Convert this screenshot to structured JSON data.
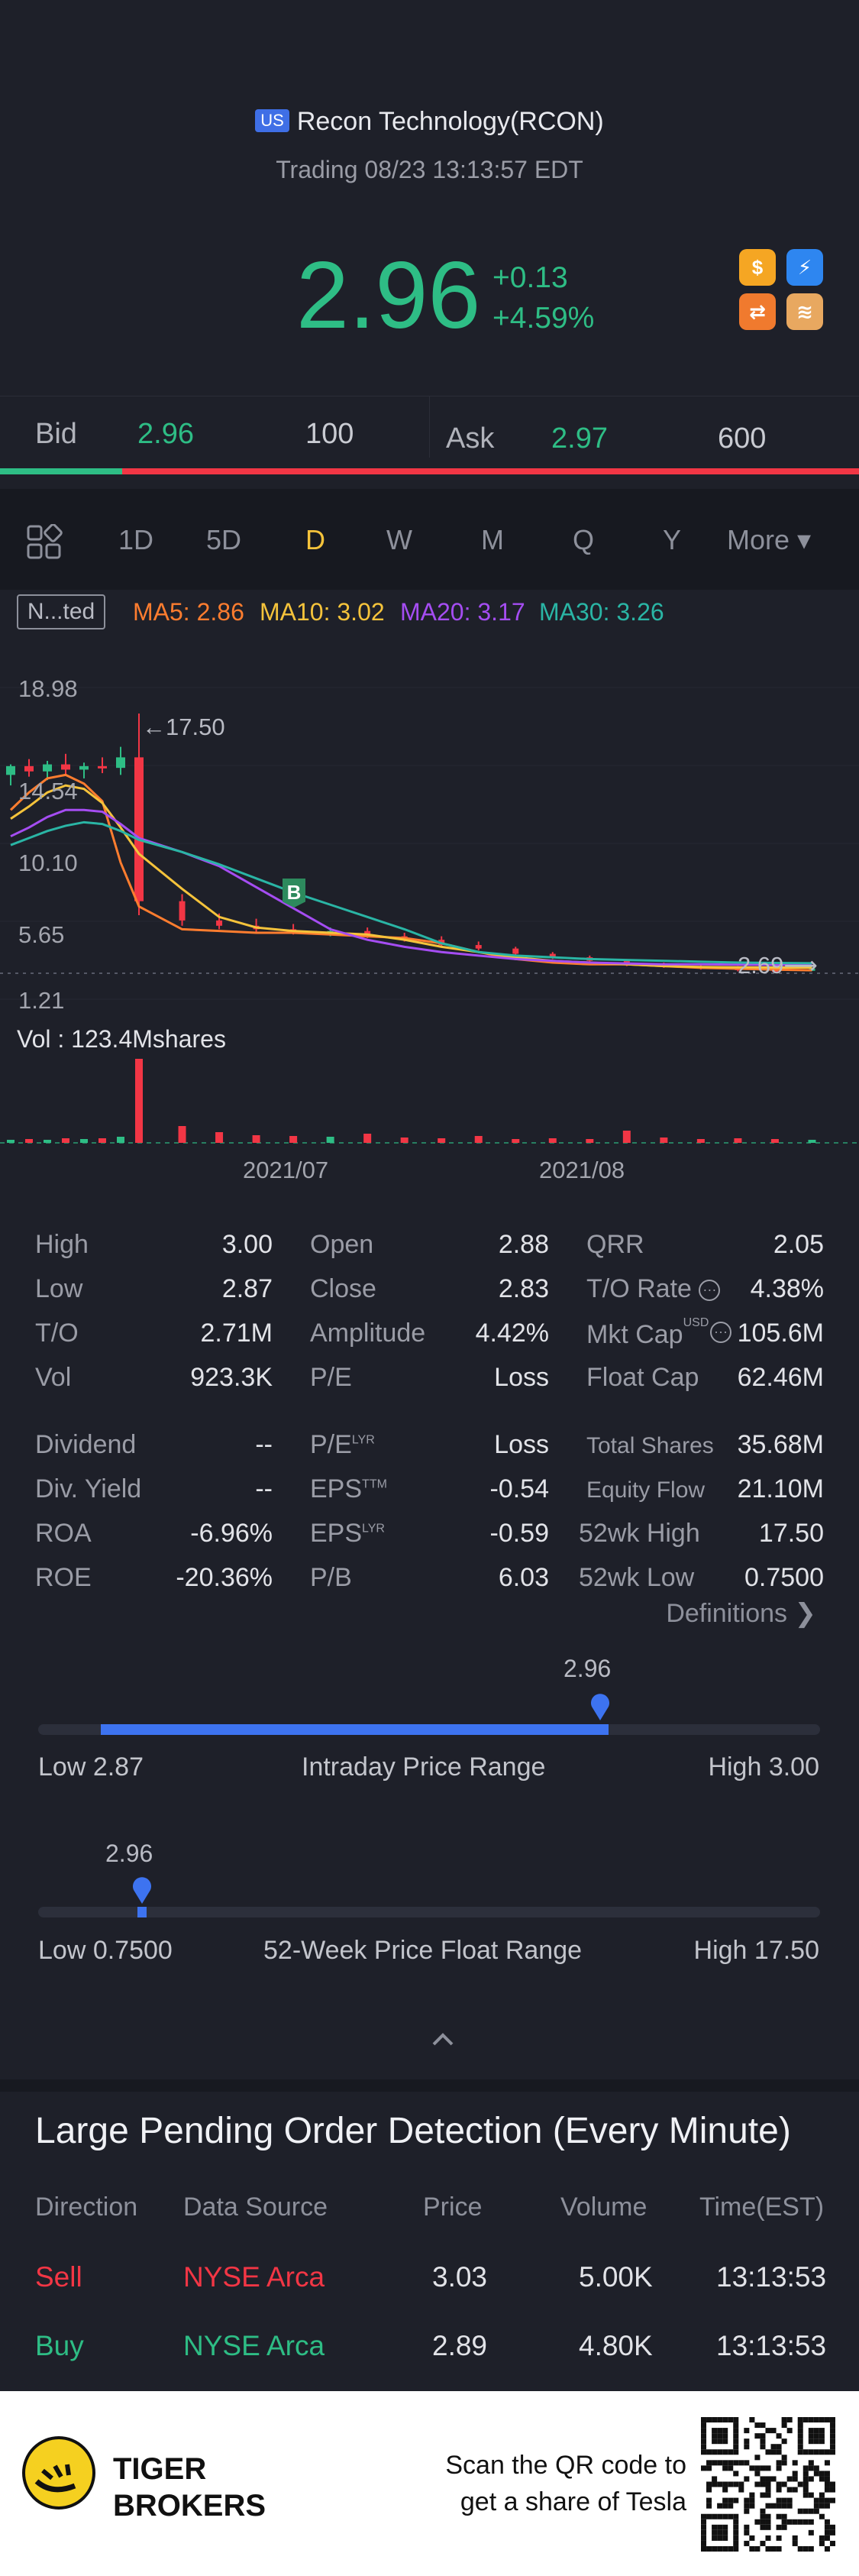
{
  "header": {
    "market_badge": "US",
    "title": "Recon Technology(RCON)",
    "status": "Trading 08/23 13:13:57 EDT",
    "price": "2.96",
    "change": "+0.13",
    "change_pct": "+4.59%",
    "icons": [
      "dollar-icon",
      "lightning-icon",
      "swap-icon",
      "book-icon"
    ]
  },
  "quote": {
    "bid_label": "Bid",
    "bid_price": "2.96",
    "bid_size": "100",
    "ask_label": "Ask",
    "ask_price": "2.97",
    "ask_size": "600"
  },
  "periods": {
    "items": [
      "1D",
      "5D",
      "D",
      "W",
      "M",
      "Q",
      "Y"
    ],
    "active": "D",
    "more_label": "More ▾"
  },
  "indicators": {
    "mode_label": "N...ted",
    "ma5": "MA5: 2.86",
    "ma10": "MA10: 3.02",
    "ma20": "MA20: 3.17",
    "ma30": "MA30: 3.26",
    "colors": {
      "ma5": "#ff7d2f",
      "ma10": "#f5c33b",
      "ma20": "#a54df2",
      "ma30": "#2ab5a5",
      "up": "#2ebd85",
      "down": "#f23645"
    }
  },
  "chart_data": {
    "type": "candlestick",
    "y_ticks": [
      "18.98",
      "14.54",
      "10.10",
      "5.65",
      "1.21"
    ],
    "ylim": [
      1.21,
      18.98
    ],
    "x_ticks": [
      "2021/07",
      "2021/08"
    ],
    "high_marker": "17.50",
    "last_marker": "2.69",
    "buy_marker": "B",
    "series": [
      {
        "name": "MA5",
        "values": [
          12.0,
          13.0,
          13.8,
          14.0,
          13.5,
          12.5,
          9.0,
          6.5,
          5.2,
          5.1,
          5.0,
          5.0,
          4.9,
          4.8,
          4.7,
          4.4,
          3.9,
          3.5,
          3.3,
          3.2,
          3.2,
          3.1,
          3.0,
          2.95,
          2.9,
          2.86
        ]
      },
      {
        "name": "MA10",
        "values": [
          11.5,
          12.2,
          13.0,
          13.4,
          13.2,
          12.4,
          11.0,
          9.5,
          7.5,
          5.9,
          5.3,
          5.1,
          5.0,
          4.9,
          4.6,
          4.2,
          3.9,
          3.6,
          3.4,
          3.3,
          3.2,
          3.1,
          3.05,
          3.03,
          3.02,
          3.02
        ]
      },
      {
        "name": "MA20",
        "values": [
          10.5,
          11.0,
          11.6,
          12.0,
          12.0,
          11.9,
          11.2,
          10.4,
          9.6,
          8.8,
          7.6,
          6.4,
          5.2,
          4.6,
          4.2,
          3.9,
          3.7,
          3.5,
          3.4,
          3.3,
          3.25,
          3.2,
          3.2,
          3.18,
          3.17,
          3.17
        ]
      },
      {
        "name": "MA30",
        "values": [
          10.0,
          10.4,
          10.8,
          11.1,
          11.3,
          11.2,
          10.8,
          10.3,
          9.6,
          8.9,
          8.1,
          7.3,
          6.6,
          5.9,
          5.2,
          4.4,
          3.9,
          3.7,
          3.6,
          3.5,
          3.45,
          3.4,
          3.35,
          3.3,
          3.28,
          3.26
        ]
      }
    ],
    "volume_label": "Vol  : 123.4Mshares"
  },
  "stats": {
    "col1": [
      {
        "label": "High",
        "value": "3.00"
      },
      {
        "label": "Low",
        "value": "2.87"
      },
      {
        "label": "T/O",
        "value": "2.71M"
      },
      {
        "label": "Vol",
        "value": "923.3K"
      },
      {
        "label": "Dividend",
        "value": "--"
      },
      {
        "label": "Div. Yield",
        "value": "--"
      },
      {
        "label": "ROA",
        "value": "-6.96%"
      },
      {
        "label": "ROE",
        "value": "-20.36%"
      }
    ],
    "col2": [
      {
        "label": "Open",
        "value": "2.88"
      },
      {
        "label": "Close",
        "value": "2.83"
      },
      {
        "label": "Amplitude",
        "value": "4.42%"
      },
      {
        "label": "P/E",
        "value": "Loss"
      },
      {
        "label": "P/E",
        "sup": "LYR",
        "value": "Loss"
      },
      {
        "label": "EPS",
        "sup": "TTM",
        "value": "-0.54"
      },
      {
        "label": "EPS",
        "sup": "LYR",
        "value": "-0.59"
      },
      {
        "label": "P/B",
        "value": "6.03"
      }
    ],
    "col3": [
      {
        "label": "QRR",
        "value": "2.05"
      },
      {
        "label": "T/O Rate",
        "value": "4.38%"
      },
      {
        "label": "Mkt Cap",
        "sup": "USD",
        "value": "105.6M"
      },
      {
        "label": "Float Cap",
        "value": "62.46M"
      },
      {
        "label": "Total Shares",
        "value": "35.68M"
      },
      {
        "label": "Equity Flow",
        "value": "21.10M"
      },
      {
        "label": "52wk High",
        "value": "17.50"
      },
      {
        "label": "52wk Low",
        "value": "0.7500"
      }
    ],
    "definitions_label": "Definitions ❯"
  },
  "ranges": {
    "intraday": {
      "current": "2.96",
      "low_label": "Low 2.87",
      "title": "Intraday Price Range",
      "high_label": "High 3.00",
      "fill_fraction": 0.69
    },
    "week52": {
      "current": "2.96",
      "low_label": "Low 0.7500",
      "title": "52-Week Price Float Range",
      "high_label": "High 17.50",
      "fill_fraction": 0.13
    }
  },
  "pending": {
    "title": "Large Pending Order Detection (Every Minute)",
    "headers": [
      "Direction",
      "Data Source",
      "Price",
      "Volume",
      "Time(EST)"
    ],
    "rows": [
      {
        "direction": "Sell",
        "source": "NYSE Arca",
        "price": "3.03",
        "volume": "5.00K",
        "time": "13:13:53",
        "color": "#f23645"
      },
      {
        "direction": "Buy",
        "source": "NYSE Arca",
        "price": "2.89",
        "volume": "4.80K",
        "time": "13:13:53",
        "color": "#2ebd85"
      }
    ]
  },
  "footer": {
    "brand_line1": "TIGER",
    "brand_line2": "BROKERS",
    "promo_line1": "Scan the QR code to",
    "promo_line2": "get a share of Tesla"
  }
}
